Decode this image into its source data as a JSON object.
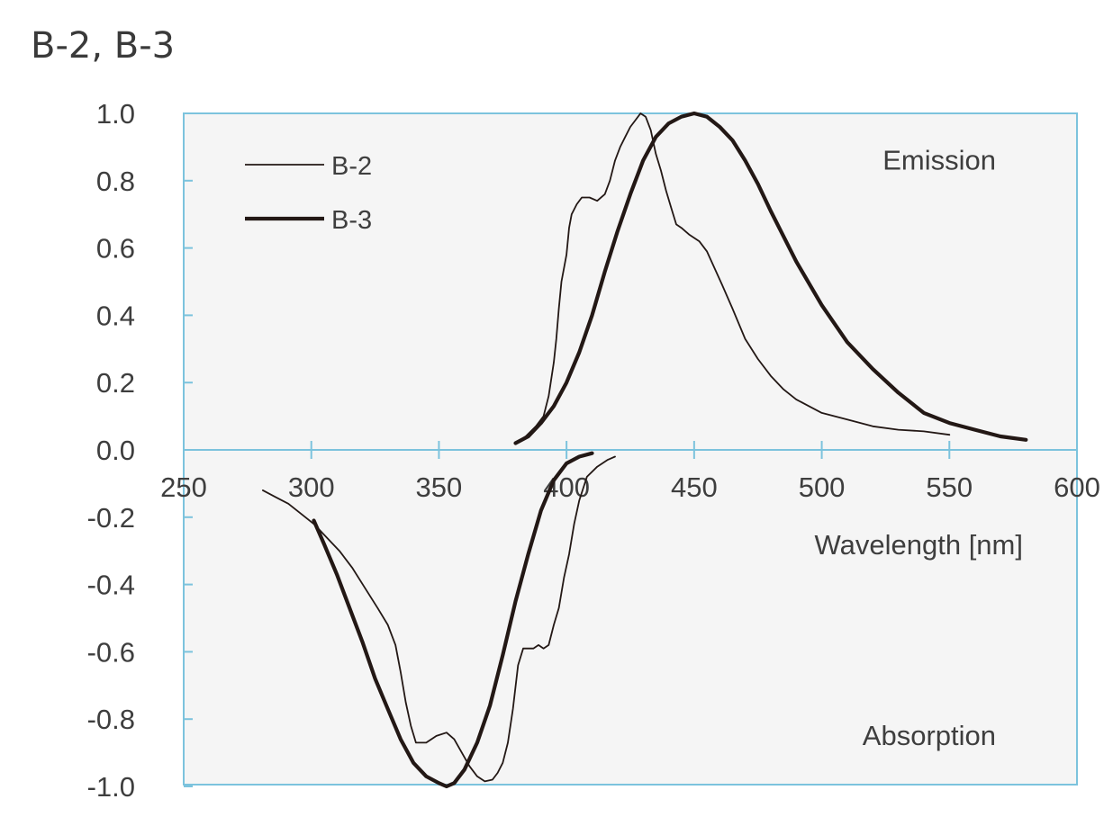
{
  "chart_data": {
    "type": "line",
    "title": "B-2, B-3",
    "xlabel": "Wavelength [nm]",
    "ylabel": "",
    "xlim": [
      250,
      600
    ],
    "ylim": [
      -1.0,
      1.0
    ],
    "x_ticks": [
      250,
      300,
      350,
      400,
      450,
      500,
      550,
      600
    ],
    "y_ticks": [
      1.0,
      0.8,
      0.6,
      0.4,
      0.2,
      0.0,
      -0.2,
      -0.4,
      -0.6,
      -0.8,
      -1.0
    ],
    "x_tick_labels": [
      "250",
      "300",
      "350",
      "400",
      "450",
      "500",
      "550",
      "600"
    ],
    "y_tick_labels": [
      "1.0",
      "0.8",
      "0.6",
      "0.4",
      "0.2",
      "0.0",
      "-0.2",
      "-0.4",
      "-0.6",
      "-0.8",
      "-1.0"
    ],
    "grid": false,
    "legend_position": "top-left",
    "annotations": [
      {
        "text": "Emission",
        "x": 467,
        "y": 0.86
      },
      {
        "text": "Absorption",
        "x": 466,
        "y": -0.85
      }
    ],
    "colors": {
      "axis": "#7cc3dd",
      "plot_background": "#f5f5f5",
      "line": "#231815"
    },
    "series": [
      {
        "name": "B-2",
        "stroke": "thin",
        "segments": [
          {
            "part": "emission",
            "points": [
              [
                380,
                0.02
              ],
              [
                384,
                0.04
              ],
              [
                388,
                0.07
              ],
              [
                391,
                0.1
              ],
              [
                393,
                0.16
              ],
              [
                395,
                0.26
              ],
              [
                396,
                0.33
              ],
              [
                397,
                0.42
              ],
              [
                398,
                0.5
              ],
              [
                400,
                0.58
              ],
              [
                401,
                0.66
              ],
              [
                402,
                0.7
              ],
              [
                404,
                0.73
              ],
              [
                406,
                0.75
              ],
              [
                409,
                0.75
              ],
              [
                412,
                0.74
              ],
              [
                415,
                0.76
              ],
              [
                417,
                0.8
              ],
              [
                419,
                0.86
              ],
              [
                421,
                0.9
              ],
              [
                423,
                0.93
              ],
              [
                425,
                0.96
              ],
              [
                427,
                0.98
              ],
              [
                429,
                1.0
              ],
              [
                431,
                0.99
              ],
              [
                433,
                0.95
              ],
              [
                435,
                0.88
              ],
              [
                437,
                0.83
              ],
              [
                439,
                0.77
              ],
              [
                441,
                0.72
              ],
              [
                443,
                0.67
              ],
              [
                445,
                0.66
              ],
              [
                448,
                0.64
              ],
              [
                452,
                0.62
              ],
              [
                455,
                0.59
              ],
              [
                458,
                0.54
              ],
              [
                461,
                0.49
              ],
              [
                465,
                0.42
              ],
              [
                470,
                0.33
              ],
              [
                475,
                0.27
              ],
              [
                480,
                0.22
              ],
              [
                485,
                0.18
              ],
              [
                490,
                0.15
              ],
              [
                495,
                0.13
              ],
              [
                500,
                0.11
              ],
              [
                510,
                0.09
              ],
              [
                520,
                0.07
              ],
              [
                530,
                0.06
              ],
              [
                540,
                0.055
              ],
              [
                550,
                0.045
              ]
            ]
          },
          {
            "part": "absorption",
            "points": [
              [
                281,
                -0.12
              ],
              [
                286,
                -0.14
              ],
              [
                291,
                -0.16
              ],
              [
                296,
                -0.19
              ],
              [
                301,
                -0.22
              ],
              [
                306,
                -0.26
              ],
              [
                311,
                -0.3
              ],
              [
                316,
                -0.35
              ],
              [
                321,
                -0.41
              ],
              [
                326,
                -0.47
              ],
              [
                330,
                -0.52
              ],
              [
                333,
                -0.58
              ],
              [
                335,
                -0.66
              ],
              [
                337,
                -0.75
              ],
              [
                339,
                -0.82
              ],
              [
                341,
                -0.87
              ],
              [
                345,
                -0.87
              ],
              [
                349,
                -0.85
              ],
              [
                353,
                -0.84
              ],
              [
                356,
                -0.86
              ],
              [
                359,
                -0.9
              ],
              [
                362,
                -0.94
              ],
              [
                365,
                -0.97
              ],
              [
                368,
                -0.985
              ],
              [
                371,
                -0.98
              ],
              [
                373,
                -0.96
              ],
              [
                375,
                -0.93
              ],
              [
                377,
                -0.87
              ],
              [
                379,
                -0.77
              ],
              [
                381,
                -0.64
              ],
              [
                383,
                -0.59
              ],
              [
                387,
                -0.59
              ],
              [
                389,
                -0.58
              ],
              [
                391,
                -0.59
              ],
              [
                393,
                -0.58
              ],
              [
                395,
                -0.52
              ],
              [
                397,
                -0.47
              ],
              [
                399,
                -0.38
              ],
              [
                401,
                -0.31
              ],
              [
                403,
                -0.22
              ],
              [
                405,
                -0.15
              ],
              [
                408,
                -0.08
              ],
              [
                412,
                -0.05
              ],
              [
                416,
                -0.03
              ],
              [
                419,
                -0.02
              ]
            ]
          }
        ]
      },
      {
        "name": "B-3",
        "stroke": "thick",
        "segments": [
          {
            "part": "emission",
            "points": [
              [
                380,
                0.02
              ],
              [
                385,
                0.04
              ],
              [
                390,
                0.08
              ],
              [
                395,
                0.13
              ],
              [
                400,
                0.2
              ],
              [
                405,
                0.29
              ],
              [
                410,
                0.4
              ],
              [
                415,
                0.53
              ],
              [
                420,
                0.65
              ],
              [
                425,
                0.76
              ],
              [
                430,
                0.86
              ],
              [
                435,
                0.93
              ],
              [
                440,
                0.97
              ],
              [
                445,
                0.99
              ],
              [
                450,
                1.0
              ],
              [
                455,
                0.99
              ],
              [
                460,
                0.96
              ],
              [
                465,
                0.92
              ],
              [
                470,
                0.86
              ],
              [
                475,
                0.79
              ],
              [
                480,
                0.71
              ],
              [
                490,
                0.56
              ],
              [
                500,
                0.43
              ],
              [
                510,
                0.32
              ],
              [
                520,
                0.24
              ],
              [
                530,
                0.17
              ],
              [
                540,
                0.11
              ],
              [
                550,
                0.08
              ],
              [
                560,
                0.06
              ],
              [
                570,
                0.04
              ],
              [
                580,
                0.03
              ]
            ]
          },
          {
            "part": "absorption",
            "points": [
              [
                301,
                -0.21
              ],
              [
                305,
                -0.28
              ],
              [
                310,
                -0.37
              ],
              [
                315,
                -0.47
              ],
              [
                320,
                -0.57
              ],
              [
                325,
                -0.68
              ],
              [
                330,
                -0.77
              ],
              [
                335,
                -0.86
              ],
              [
                340,
                -0.93
              ],
              [
                345,
                -0.97
              ],
              [
                350,
                -0.99
              ],
              [
                353,
                -1.0
              ],
              [
                356,
                -0.99
              ],
              [
                360,
                -0.95
              ],
              [
                365,
                -0.87
              ],
              [
                370,
                -0.76
              ],
              [
                375,
                -0.61
              ],
              [
                380,
                -0.45
              ],
              [
                385,
                -0.31
              ],
              [
                390,
                -0.18
              ],
              [
                395,
                -0.09
              ],
              [
                400,
                -0.04
              ],
              [
                405,
                -0.02
              ],
              [
                410,
                -0.01
              ]
            ]
          }
        ]
      }
    ]
  }
}
